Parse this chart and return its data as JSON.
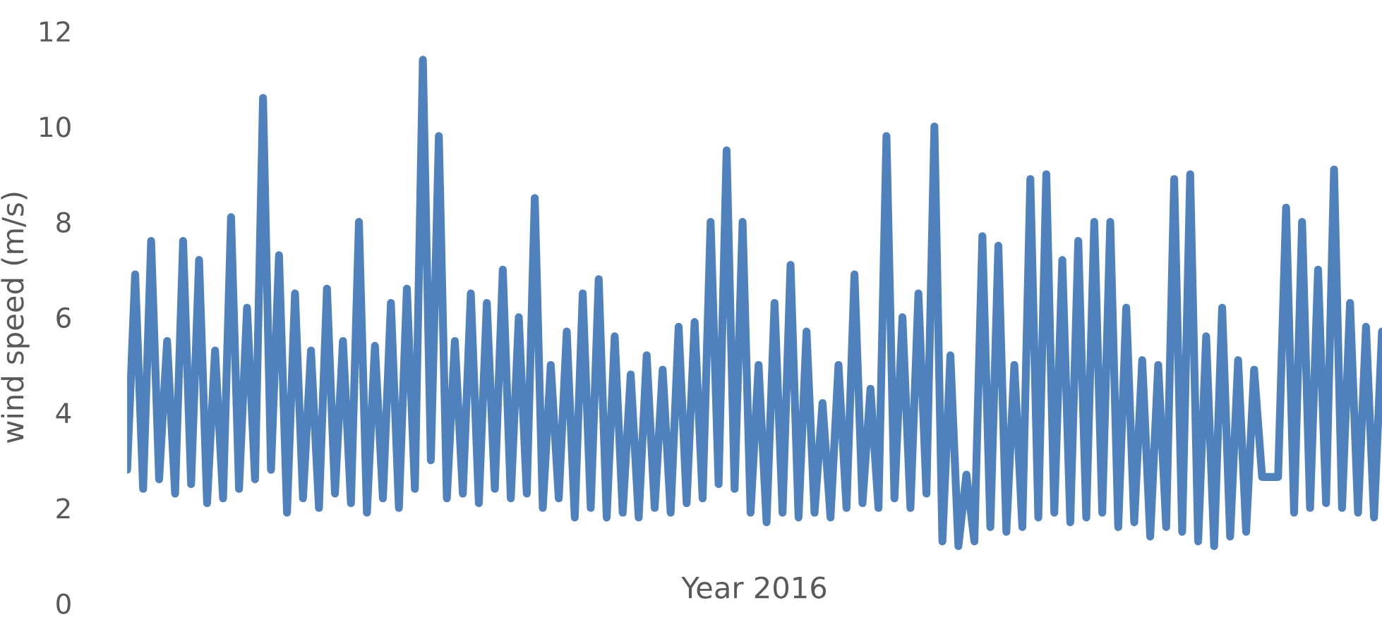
{
  "chart_data": {
    "type": "line",
    "xlabel": "Year 2016",
    "ylabel": "wind speed (m/s)",
    "ylim": [
      0,
      12
    ],
    "yticks": [
      0,
      2,
      4,
      6,
      8,
      10,
      12
    ],
    "tick_labels": "y",
    "grid": false,
    "legend": false,
    "marker": "none",
    "line_style": "solid",
    "categories": [
      null,
      null,
      null,
      null,
      null,
      null,
      null,
      null,
      null,
      null,
      null,
      null,
      null,
      null,
      null,
      null,
      null,
      null,
      null,
      null,
      null,
      null,
      null,
      null,
      null,
      null,
      null,
      null,
      null,
      null,
      null,
      null,
      null,
      null,
      null,
      null,
      null,
      null,
      null,
      null,
      null,
      null,
      null,
      null,
      null,
      null,
      null,
      null,
      null,
      null,
      null,
      null,
      null,
      null,
      null,
      null,
      null,
      null,
      null,
      null,
      null,
      null,
      null,
      null,
      null,
      null,
      null,
      null,
      null,
      null,
      null,
      null,
      null,
      null,
      null,
      null,
      null,
      null,
      null,
      null,
      null,
      null,
      null,
      null,
      null,
      null,
      null,
      null,
      null,
      null,
      null,
      null,
      null,
      null,
      null,
      null,
      null,
      null,
      null,
      null,
      null,
      null,
      null,
      null,
      null,
      null,
      null,
      null,
      null,
      null,
      null,
      null,
      null,
      null,
      null,
      null,
      null,
      null,
      null,
      null,
      null,
      null,
      null,
      null,
      null,
      null,
      null,
      null,
      null,
      null,
      null,
      null,
      null,
      null,
      null,
      null,
      null,
      null,
      null,
      null,
      null,
      null,
      null,
      null,
      null,
      null,
      null,
      null,
      null,
      null,
      null,
      null,
      null,
      null,
      null,
      null,
      null,
      null
    ],
    "series": [
      {
        "color": "#4f81bd",
        "values": [
          2.8,
          6.9,
          2.4,
          7.6,
          2.6,
          5.5,
          2.3,
          7.6,
          2.5,
          7.2,
          2.1,
          5.3,
          2.2,
          8.1,
          2.4,
          6.2,
          2.6,
          10.6,
          2.8,
          7.3,
          1.9,
          6.5,
          2.2,
          5.3,
          2.0,
          6.6,
          2.3,
          5.5,
          2.1,
          8.0,
          1.9,
          5.4,
          2.2,
          6.3,
          2.0,
          6.6,
          2.4,
          11.4,
          3.0,
          9.8,
          2.2,
          5.5,
          2.3,
          6.5,
          2.1,
          6.3,
          2.4,
          7.0,
          2.2,
          6.0,
          2.3,
          8.5,
          2.0,
          5.0,
          2.2,
          5.7,
          1.8,
          6.5,
          2.0,
          6.8,
          1.8,
          5.6,
          1.9,
          4.8,
          1.8,
          5.2,
          2.0,
          4.9,
          1.9,
          5.8,
          2.1,
          5.9,
          2.2,
          8.0,
          2.5,
          9.5,
          2.4,
          8.0,
          1.9,
          5.0,
          1.7,
          6.3,
          1.9,
          7.1,
          1.8,
          5.7,
          1.9,
          4.2,
          1.8,
          5.0,
          2.0,
          6.9,
          2.1,
          4.5,
          2.0,
          9.8,
          2.2,
          6.0,
          2.0,
          6.5,
          2.3,
          10.0,
          1.3,
          5.2,
          1.2,
          2.7,
          1.3,
          7.7,
          1.6,
          7.5,
          1.5,
          5.0,
          1.6,
          8.9,
          1.8,
          9.0,
          1.9,
          7.2,
          1.7,
          7.6,
          1.8,
          8.0,
          1.9,
          8.0,
          1.6,
          6.2,
          1.7,
          5.1,
          1.4,
          5.0,
          1.6,
          8.9,
          1.5,
          9.0,
          1.3,
          5.6,
          1.2,
          6.2,
          1.4,
          5.1,
          1.5,
          4.9,
          2.65,
          2.65,
          2.65,
          8.3,
          1.9,
          8.0,
          2.0,
          7.0,
          2.1,
          9.1,
          2.0,
          6.3,
          1.9,
          5.8,
          1.8,
          5.7
        ]
      }
    ]
  }
}
